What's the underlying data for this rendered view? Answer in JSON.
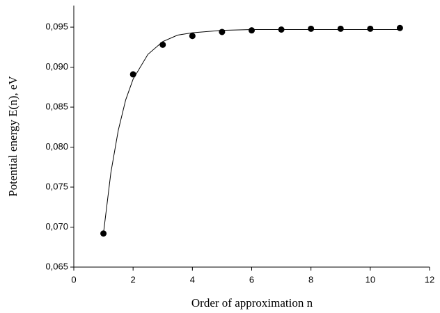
{
  "chart_data": {
    "type": "scatter",
    "x_label": "Order of approximation n",
    "y_label": "Potential energy E(n), eV",
    "xlim": [
      0,
      12
    ],
    "ylim": [
      0.065,
      0.0977
    ],
    "xticks": [
      0,
      2,
      4,
      6,
      8,
      10,
      12
    ],
    "yticks": [
      {
        "value": 0.065,
        "label": "0,065"
      },
      {
        "value": 0.07,
        "label": "0,070"
      },
      {
        "value": 0.075,
        "label": "0,075"
      },
      {
        "value": 0.08,
        "label": "0,080"
      },
      {
        "value": 0.085,
        "label": "0,085"
      },
      {
        "value": 0.09,
        "label": "0,090"
      },
      {
        "value": 0.095,
        "label": "0,095"
      }
    ],
    "series": [
      {
        "type": "scatter",
        "color": "#000000",
        "x": [
          1,
          2,
          3,
          4,
          5,
          6,
          7,
          8,
          9,
          10,
          11
        ],
        "values": [
          0.0692,
          0.0891,
          0.0928,
          0.0939,
          0.0944,
          0.0946,
          0.0947,
          0.0948,
          0.0948,
          0.0948,
          0.0949
        ]
      },
      {
        "type": "line",
        "color": "#000000",
        "x": [
          1,
          1.25,
          1.5,
          1.75,
          2,
          2.5,
          3,
          3.5,
          4,
          5,
          6,
          8,
          11
        ],
        "values": [
          0.0692,
          0.0768,
          0.0821,
          0.0859,
          0.0885,
          0.0916,
          0.0932,
          0.094,
          0.0943,
          0.0946,
          0.0947,
          0.0947,
          0.0947
        ]
      }
    ]
  }
}
